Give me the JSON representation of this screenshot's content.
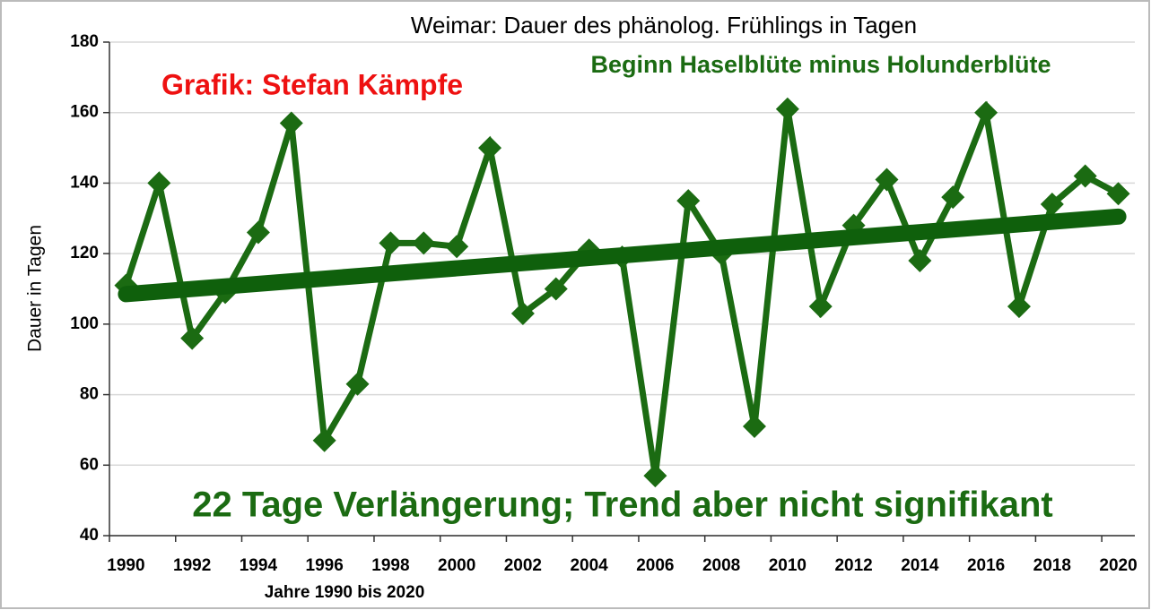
{
  "chart_data": {
    "type": "line",
    "title": "Weimar: Dauer des phänolog. Frühlings in Tagen",
    "subtitle": "Beginn Haselblüte minus Holunderblüte",
    "credit": "Grafik: Stefan Kämpfe",
    "note": "22 Tage Verlängerung; Trend aber nicht signifikant",
    "y_label": "Dauer in Tagen",
    "x_label": "Jahre 1990 bis 2020",
    "categories": [
      "1990",
      null,
      "1992",
      null,
      "1994",
      null,
      "1996",
      null,
      "1998",
      null,
      "2000",
      null,
      "2002",
      null,
      "2004",
      null,
      "2006",
      null,
      "2008",
      null,
      "2010",
      null,
      "2012",
      null,
      "2014",
      null,
      "2016",
      null,
      "2018",
      null,
      "2020"
    ],
    "values": [
      111,
      140,
      96,
      109,
      126,
      157,
      67,
      83,
      123,
      123,
      122,
      150,
      103,
      110,
      121,
      119,
      57,
      135,
      120,
      71,
      161,
      105,
      128,
      141,
      118,
      136,
      160,
      105,
      134,
      142,
      137
    ],
    "color": "#1b6b12",
    "trend": {
      "values": [
        108.5,
        130.5
      ],
      "color": "#0f600c"
    },
    "ylim": [
      40,
      180
    ],
    "yticks": [
      40,
      60,
      80,
      100,
      120,
      140,
      160,
      180
    ],
    "grid": true
  }
}
